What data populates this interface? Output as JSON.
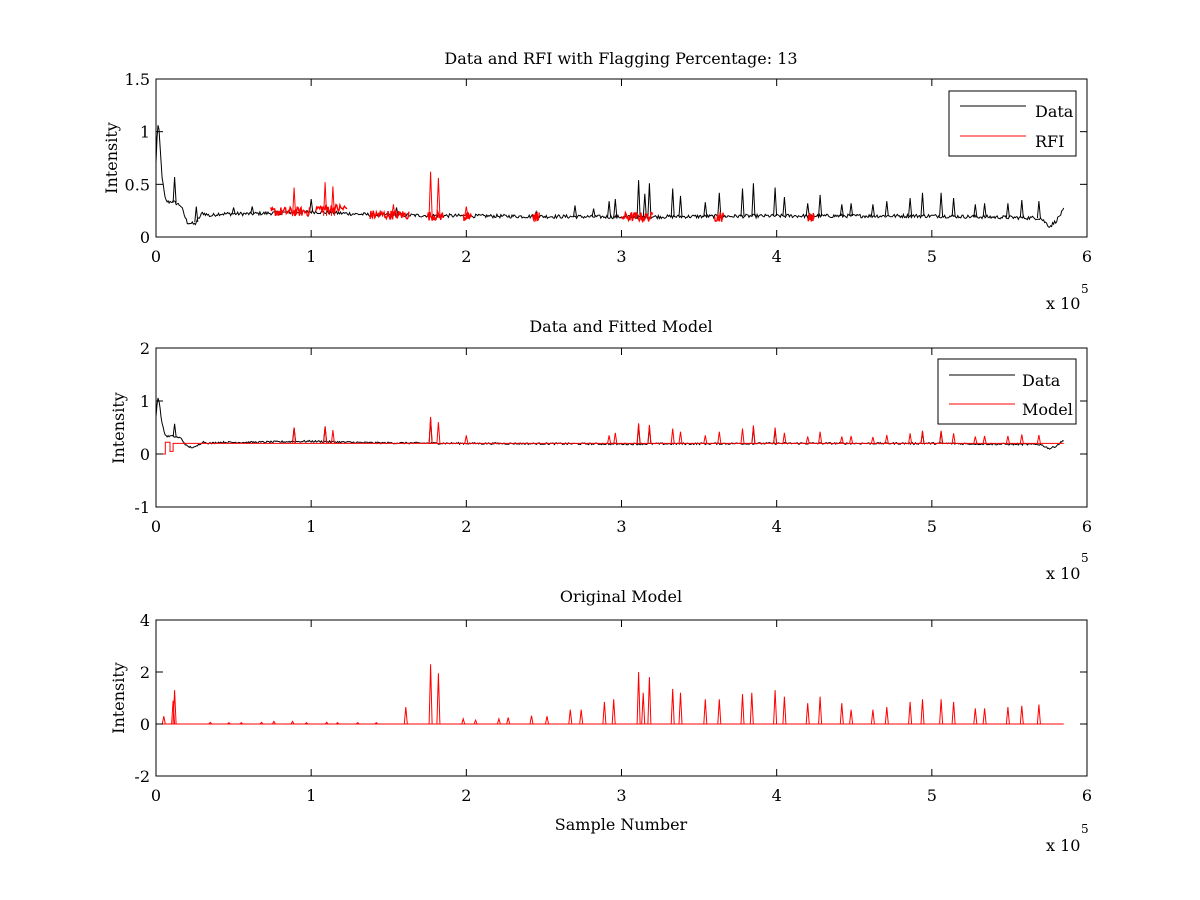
{
  "chart_data": [
    {
      "type": "line",
      "title": "Data and RFI with Flagging Percentage: 13",
      "xlabel": "",
      "ylabel": "Intensity",
      "xlim": [
        0,
        600000
      ],
      "ylim": [
        0,
        1.5
      ],
      "xticks": [
        0,
        100000,
        200000,
        300000,
        400000,
        500000,
        600000
      ],
      "xtick_labels": [
        "0",
        "1",
        "2",
        "3",
        "4",
        "5",
        "6"
      ],
      "yticks": [
        0,
        0.5,
        1,
        1.5
      ],
      "ytick_labels": [
        "0",
        "0.5",
        "1",
        "1.5"
      ],
      "x_multiplier_label": "x 10",
      "x_multiplier_exponent": "5",
      "legend_position": "top-right",
      "series": [
        {
          "name": "Data",
          "color": "#000000",
          "baseline": 0.19,
          "x": [
            0,
            1000,
            2000,
            4000,
            6000,
            8000,
            10000,
            13000,
            16000,
            20000,
            25000,
            30000,
            35000,
            40000,
            60000,
            100000,
            140000,
            200000,
            300000,
            400000,
            500000,
            570000,
            576000,
            580000,
            585000
          ],
          "y": [
            0.7,
            1.08,
            1.0,
            0.55,
            0.35,
            0.33,
            0.34,
            0.32,
            0.3,
            0.14,
            0.12,
            0.23,
            0.2,
            0.22,
            0.22,
            0.24,
            0.21,
            0.2,
            0.19,
            0.2,
            0.2,
            0.18,
            0.1,
            0.15,
            0.26
          ],
          "spikes": [
            {
              "x": 12000,
              "y": 0.57
            },
            {
              "x": 26000,
              "y": 0.29
            },
            {
              "x": 50000,
              "y": 0.28
            },
            {
              "x": 62000,
              "y": 0.29
            },
            {
              "x": 100000,
              "y": 0.36
            },
            {
              "x": 155000,
              "y": 0.28
            },
            {
              "x": 245000,
              "y": 0.24
            },
            {
              "x": 270000,
              "y": 0.3
            },
            {
              "x": 282000,
              "y": 0.27
            },
            {
              "x": 292000,
              "y": 0.34
            },
            {
              "x": 296000,
              "y": 0.36
            },
            {
              "x": 311000,
              "y": 0.54
            },
            {
              "x": 315000,
              "y": 0.41
            },
            {
              "x": 318000,
              "y": 0.51
            },
            {
              "x": 333000,
              "y": 0.46
            },
            {
              "x": 338000,
              "y": 0.39
            },
            {
              "x": 354000,
              "y": 0.33
            },
            {
              "x": 363000,
              "y": 0.42
            },
            {
              "x": 378000,
              "y": 0.46
            },
            {
              "x": 385000,
              "y": 0.51
            },
            {
              "x": 399000,
              "y": 0.47
            },
            {
              "x": 405000,
              "y": 0.38
            },
            {
              "x": 420000,
              "y": 0.32
            },
            {
              "x": 428000,
              "y": 0.4
            },
            {
              "x": 442000,
              "y": 0.31
            },
            {
              "x": 448000,
              "y": 0.32
            },
            {
              "x": 462000,
              "y": 0.31
            },
            {
              "x": 471000,
              "y": 0.34
            },
            {
              "x": 486000,
              "y": 0.37
            },
            {
              "x": 494000,
              "y": 0.42
            },
            {
              "x": 506000,
              "y": 0.42
            },
            {
              "x": 514000,
              "y": 0.37
            },
            {
              "x": 528000,
              "y": 0.31
            },
            {
              "x": 534000,
              "y": 0.32
            },
            {
              "x": 549000,
              "y": 0.32
            },
            {
              "x": 558000,
              "y": 0.35
            },
            {
              "x": 569000,
              "y": 0.34
            }
          ]
        },
        {
          "name": "RFI",
          "color": "#ff0000",
          "segments": [
            {
              "x0": 74000,
              "x1": 99000,
              "y": 0.24
            },
            {
              "x0": 103000,
              "x1": 123000,
              "y": 0.27
            },
            {
              "x0": 138000,
              "x1": 163000,
              "y": 0.21
            },
            {
              "x0": 175000,
              "x1": 185000,
              "y": 0.2
            },
            {
              "x0": 198000,
              "x1": 203000,
              "y": 0.19
            },
            {
              "x0": 243000,
              "x1": 247000,
              "y": 0.19
            },
            {
              "x0": 300000,
              "x1": 320000,
              "y": 0.19
            },
            {
              "x0": 360000,
              "x1": 366000,
              "y": 0.19
            },
            {
              "x0": 420000,
              "x1": 424000,
              "y": 0.19
            }
          ],
          "spikes": [
            {
              "x": 89000,
              "y": 0.47
            },
            {
              "x": 109000,
              "y": 0.52
            },
            {
              "x": 114000,
              "y": 0.48
            },
            {
              "x": 153000,
              "y": 0.31
            },
            {
              "x": 177000,
              "y": 0.62
            },
            {
              "x": 182000,
              "y": 0.56
            },
            {
              "x": 200000,
              "y": 0.29
            }
          ]
        }
      ]
    },
    {
      "type": "line",
      "title": "Data and Fitted Model",
      "xlabel": "",
      "ylabel": "Intensity",
      "xlim": [
        0,
        600000
      ],
      "ylim": [
        -1,
        2
      ],
      "xticks": [
        0,
        100000,
        200000,
        300000,
        400000,
        500000,
        600000
      ],
      "xtick_labels": [
        "0",
        "1",
        "2",
        "3",
        "4",
        "5",
        "6"
      ],
      "yticks": [
        -1,
        0,
        1,
        2
      ],
      "ytick_labels": [
        "-1",
        "0",
        "1",
        "2"
      ],
      "x_multiplier_label": "x 10",
      "x_multiplier_exponent": "5",
      "legend_position": "top-right",
      "series": [
        {
          "name": "Data",
          "color": "#000000",
          "baseline": 0.19,
          "x": [
            0,
            1000,
            2000,
            4000,
            6000,
            8000,
            10000,
            13000,
            16000,
            20000,
            25000,
            30000,
            35000,
            40000,
            60000,
            100000,
            140000,
            200000,
            300000,
            400000,
            500000,
            570000,
            576000,
            580000,
            585000
          ],
          "y": [
            0.7,
            1.08,
            1.0,
            0.55,
            0.35,
            0.33,
            0.34,
            0.32,
            0.3,
            0.14,
            0.12,
            0.23,
            0.2,
            0.22,
            0.22,
            0.24,
            0.21,
            0.2,
            0.19,
            0.2,
            0.2,
            0.18,
            0.1,
            0.15,
            0.26
          ],
          "spikes": [
            {
              "x": 12000,
              "y": 0.57
            },
            {
              "x": 89000,
              "y": 0.5
            },
            {
              "x": 109000,
              "y": 0.52
            },
            {
              "x": 177000,
              "y": 0.66
            },
            {
              "x": 311000,
              "y": 0.54
            },
            {
              "x": 318000,
              "y": 0.51
            },
            {
              "x": 385000,
              "y": 0.5
            },
            {
              "x": 399000,
              "y": 0.46
            },
            {
              "x": 494000,
              "y": 0.42
            },
            {
              "x": 506000,
              "y": 0.42
            }
          ]
        },
        {
          "name": "Model",
          "color": "#ff0000",
          "steps": [
            {
              "x": 0,
              "y": 0.0
            },
            {
              "x": 6000,
              "y": 0.0
            },
            {
              "x": 6000,
              "y": 0.22
            },
            {
              "x": 9000,
              "y": 0.22
            },
            {
              "x": 9000,
              "y": 0.05
            },
            {
              "x": 11000,
              "y": 0.05
            },
            {
              "x": 11000,
              "y": 0.2
            },
            {
              "x": 585000,
              "y": 0.2
            }
          ],
          "spikes": [
            {
              "x": 89000,
              "y": 0.5
            },
            {
              "x": 109000,
              "y": 0.52
            },
            {
              "x": 114000,
              "y": 0.45
            },
            {
              "x": 177000,
              "y": 0.7
            },
            {
              "x": 182000,
              "y": 0.6
            },
            {
              "x": 200000,
              "y": 0.35
            },
            {
              "x": 292000,
              "y": 0.35
            },
            {
              "x": 296000,
              "y": 0.4
            },
            {
              "x": 311000,
              "y": 0.58
            },
            {
              "x": 318000,
              "y": 0.55
            },
            {
              "x": 333000,
              "y": 0.48
            },
            {
              "x": 338000,
              "y": 0.42
            },
            {
              "x": 354000,
              "y": 0.35
            },
            {
              "x": 363000,
              "y": 0.42
            },
            {
              "x": 378000,
              "y": 0.48
            },
            {
              "x": 385000,
              "y": 0.54
            },
            {
              "x": 399000,
              "y": 0.5
            },
            {
              "x": 405000,
              "y": 0.4
            },
            {
              "x": 420000,
              "y": 0.33
            },
            {
              "x": 428000,
              "y": 0.42
            },
            {
              "x": 442000,
              "y": 0.33
            },
            {
              "x": 448000,
              "y": 0.34
            },
            {
              "x": 462000,
              "y": 0.32
            },
            {
              "x": 471000,
              "y": 0.36
            },
            {
              "x": 486000,
              "y": 0.39
            },
            {
              "x": 494000,
              "y": 0.44
            },
            {
              "x": 506000,
              "y": 0.44
            },
            {
              "x": 514000,
              "y": 0.39
            },
            {
              "x": 528000,
              "y": 0.33
            },
            {
              "x": 534000,
              "y": 0.34
            },
            {
              "x": 549000,
              "y": 0.34
            },
            {
              "x": 558000,
              "y": 0.37
            },
            {
              "x": 569000,
              "y": 0.36
            }
          ]
        }
      ]
    },
    {
      "type": "line",
      "title": "Original Model",
      "xlabel": "Sample Number",
      "ylabel": "Intensity",
      "xlim": [
        0,
        600000
      ],
      "ylim": [
        -2,
        4
      ],
      "xticks": [
        0,
        100000,
        200000,
        300000,
        400000,
        500000,
        600000
      ],
      "xtick_labels": [
        "0",
        "1",
        "2",
        "3",
        "4",
        "5",
        "6"
      ],
      "yticks": [
        -2,
        0,
        2,
        4
      ],
      "ytick_labels": [
        "-2",
        "0",
        "2",
        "4"
      ],
      "x_multiplier_label": "x 10",
      "x_multiplier_exponent": "5",
      "series": [
        {
          "color": "#ff0000",
          "baseline": 0.0,
          "x_start": 0,
          "x_end": 585000,
          "spikes": [
            {
              "x": 5000,
              "y": 0.3
            },
            {
              "x": 11000,
              "y": 0.9
            },
            {
              "x": 12000,
              "y": 1.3
            },
            {
              "x": 35000,
              "y": 0.06
            },
            {
              "x": 47000,
              "y": 0.05
            },
            {
              "x": 55000,
              "y": 0.05
            },
            {
              "x": 68000,
              "y": 0.06
            },
            {
              "x": 76000,
              "y": 0.1
            },
            {
              "x": 88000,
              "y": 0.1
            },
            {
              "x": 97000,
              "y": 0.05
            },
            {
              "x": 110000,
              "y": 0.06
            },
            {
              "x": 117000,
              "y": 0.05
            },
            {
              "x": 130000,
              "y": 0.05
            },
            {
              "x": 142000,
              "y": 0.05
            },
            {
              "x": 161000,
              "y": 0.65
            },
            {
              "x": 177000,
              "y": 2.3
            },
            {
              "x": 182000,
              "y": 1.95
            },
            {
              "x": 198000,
              "y": 0.2
            },
            {
              "x": 206000,
              "y": 0.15
            },
            {
              "x": 221000,
              "y": 0.2
            },
            {
              "x": 227000,
              "y": 0.25
            },
            {
              "x": 242000,
              "y": 0.32
            },
            {
              "x": 252000,
              "y": 0.3
            },
            {
              "x": 267000,
              "y": 0.55
            },
            {
              "x": 274000,
              "y": 0.55
            },
            {
              "x": 289000,
              "y": 0.85
            },
            {
              "x": 295000,
              "y": 0.95
            },
            {
              "x": 311000,
              "y": 2.0
            },
            {
              "x": 314000,
              "y": 1.2
            },
            {
              "x": 318000,
              "y": 1.8
            },
            {
              "x": 333000,
              "y": 1.35
            },
            {
              "x": 338000,
              "y": 1.2
            },
            {
              "x": 354000,
              "y": 0.95
            },
            {
              "x": 363000,
              "y": 0.95
            },
            {
              "x": 378000,
              "y": 1.15
            },
            {
              "x": 384000,
              "y": 1.2
            },
            {
              "x": 399000,
              "y": 1.3
            },
            {
              "x": 405000,
              "y": 1.05
            },
            {
              "x": 420000,
              "y": 0.8
            },
            {
              "x": 428000,
              "y": 1.05
            },
            {
              "x": 442000,
              "y": 0.8
            },
            {
              "x": 448000,
              "y": 0.55
            },
            {
              "x": 462000,
              "y": 0.55
            },
            {
              "x": 471000,
              "y": 0.65
            },
            {
              "x": 486000,
              "y": 0.85
            },
            {
              "x": 494000,
              "y": 0.95
            },
            {
              "x": 506000,
              "y": 0.95
            },
            {
              "x": 514000,
              "y": 0.85
            },
            {
              "x": 528000,
              "y": 0.6
            },
            {
              "x": 534000,
              "y": 0.6
            },
            {
              "x": 549000,
              "y": 0.65
            },
            {
              "x": 558000,
              "y": 0.7
            },
            {
              "x": 569000,
              "y": 0.75
            }
          ]
        }
      ]
    }
  ]
}
